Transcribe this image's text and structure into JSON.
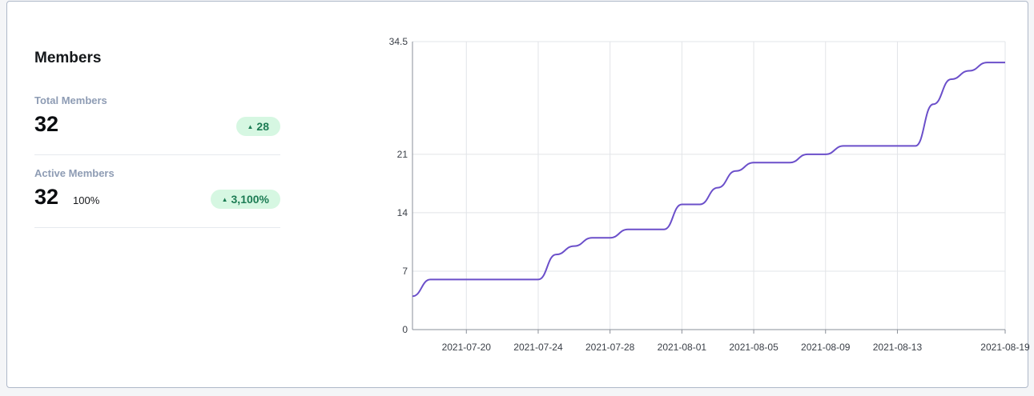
{
  "widget": {
    "title": "Members",
    "total": {
      "label": "Total Members",
      "value": "32",
      "change": "28"
    },
    "active": {
      "label": "Active Members",
      "value": "32",
      "percent": "100%",
      "change": "3,100%"
    },
    "colors": {
      "accent": "#6b4fca",
      "badge_bg": "#d6f7e2",
      "badge_text": "#1c7c54"
    }
  },
  "chart_data": {
    "type": "line",
    "title": "",
    "xlabel": "",
    "ylabel": "",
    "ylim": [
      0,
      34.5
    ],
    "xlim": [
      "2021-07-17",
      "2021-08-19"
    ],
    "yticks": [
      0,
      7,
      14,
      21,
      34.5
    ],
    "ytick_labels": [
      "0",
      "7",
      "14",
      "21",
      "34.5"
    ],
    "xticks": [
      "2021-07-20",
      "2021-07-24",
      "2021-07-28",
      "2021-08-01",
      "2021-08-05",
      "2021-08-09",
      "2021-08-13",
      "2021-08-19"
    ],
    "grid": true,
    "legend": "none",
    "series": [
      {
        "color": "#6b4fca",
        "x": [
          "2021-07-17",
          "2021-07-18",
          "2021-07-19",
          "2021-07-20",
          "2021-07-21",
          "2021-07-22",
          "2021-07-23",
          "2021-07-24",
          "2021-07-25",
          "2021-07-26",
          "2021-07-27",
          "2021-07-28",
          "2021-07-29",
          "2021-07-30",
          "2021-07-31",
          "2021-08-01",
          "2021-08-02",
          "2021-08-03",
          "2021-08-04",
          "2021-08-05",
          "2021-08-06",
          "2021-08-07",
          "2021-08-08",
          "2021-08-09",
          "2021-08-10",
          "2021-08-11",
          "2021-08-12",
          "2021-08-13",
          "2021-08-14",
          "2021-08-15",
          "2021-08-16",
          "2021-08-17",
          "2021-08-18",
          "2021-08-19"
        ],
        "values": [
          4,
          6,
          6,
          6,
          6,
          6,
          6,
          6,
          9,
          10,
          11,
          11,
          12,
          12,
          12,
          15,
          15,
          17,
          19,
          20,
          20,
          20,
          21,
          21,
          22,
          22,
          22,
          22,
          22,
          27,
          30,
          31,
          32,
          32
        ]
      }
    ]
  }
}
